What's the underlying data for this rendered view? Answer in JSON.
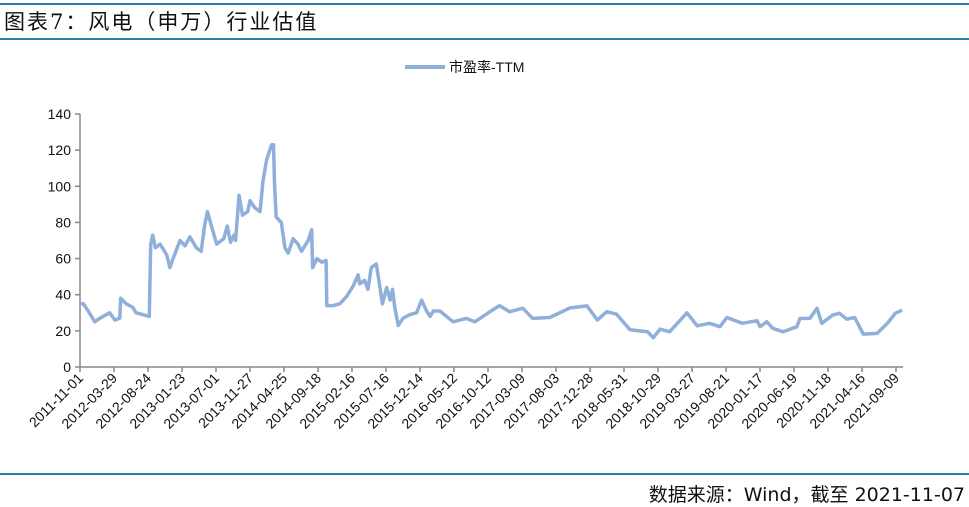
{
  "title": "图表7：风电（申万）行业估值",
  "source": "数据来源：Wind，截至 2021-11-07",
  "chart_data": {
    "type": "line",
    "title": "",
    "xlabel": "",
    "ylabel": "",
    "ylim": [
      0,
      140
    ],
    "yticks": [
      0,
      20,
      40,
      60,
      80,
      100,
      120,
      140
    ],
    "xticks": [
      "2011-11-01",
      "2012-03-29",
      "2012-08-24",
      "2013-01-23",
      "2013-07-01",
      "2013-11-27",
      "2014-04-25",
      "2014-09-18",
      "2015-02-16",
      "2015-07-16",
      "2015-12-14",
      "2016-05-12",
      "2016-10-12",
      "2017-03-09",
      "2017-08-03",
      "2017-12-28",
      "2018-05-31",
      "2018-10-29",
      "2019-03-27",
      "2019-08-21",
      "2020-01-17",
      "2020-06-19",
      "2020-11-18",
      "2021-04-16",
      "2021-09-09"
    ],
    "grid": false,
    "legend_position": "top",
    "line_color": "#8fb0da",
    "series": [
      {
        "name": "市盈率-TTM",
        "points": [
          [
            "2011-11-01",
            35
          ],
          [
            "2011-11-16",
            35
          ],
          [
            "2011-12-07",
            31
          ],
          [
            "2012-01-05",
            25
          ],
          [
            "2012-01-27",
            27
          ],
          [
            "2012-03-10",
            30
          ],
          [
            "2012-04-02",
            26
          ],
          [
            "2012-04-23",
            27
          ],
          [
            "2012-04-27",
            38
          ],
          [
            "2012-05-21",
            35
          ],
          [
            "2012-06-19",
            33
          ],
          [
            "2012-07-03",
            30
          ],
          [
            "2012-08-01",
            29
          ],
          [
            "2012-08-30",
            28
          ],
          [
            "2012-09-05",
            68
          ],
          [
            "2012-09-14",
            73
          ],
          [
            "2012-09-26",
            66
          ],
          [
            "2012-10-17",
            68
          ],
          [
            "2012-11-16",
            62
          ],
          [
            "2012-11-30",
            55
          ],
          [
            "2012-12-14",
            60
          ],
          [
            "2013-01-14",
            70
          ],
          [
            "2013-02-06",
            67
          ],
          [
            "2013-03-01",
            72
          ],
          [
            "2013-03-31",
            66
          ],
          [
            "2013-04-23",
            64
          ],
          [
            "2013-05-08",
            78
          ],
          [
            "2013-05-22",
            86
          ],
          [
            "2013-06-17",
            75
          ],
          [
            "2013-07-04",
            68
          ],
          [
            "2013-08-04",
            71
          ],
          [
            "2013-08-19",
            78
          ],
          [
            "2013-09-03",
            69
          ],
          [
            "2013-09-18",
            73
          ],
          [
            "2013-09-25",
            70
          ],
          [
            "2013-10-10",
            95
          ],
          [
            "2013-10-25",
            84
          ],
          [
            "2013-11-17",
            86
          ],
          [
            "2013-11-27",
            92
          ],
          [
            "2013-12-19",
            88
          ],
          [
            "2014-01-10",
            86
          ],
          [
            "2014-01-23",
            103
          ],
          [
            "2014-02-08",
            115
          ],
          [
            "2014-03-02",
            123
          ],
          [
            "2014-03-10",
            123
          ],
          [
            "2014-03-15",
            100
          ],
          [
            "2014-03-22",
            83
          ],
          [
            "2014-04-13",
            80
          ],
          [
            "2014-04-29",
            66
          ],
          [
            "2014-05-13",
            63
          ],
          [
            "2014-06-03",
            71
          ],
          [
            "2014-06-24",
            68
          ],
          [
            "2014-07-09",
            64
          ],
          [
            "2014-08-07",
            70
          ],
          [
            "2014-08-22",
            76
          ],
          [
            "2014-08-26",
            55
          ],
          [
            "2014-09-13",
            60
          ],
          [
            "2014-10-05",
            58
          ],
          [
            "2014-10-24",
            59
          ],
          [
            "2014-10-27",
            34
          ],
          [
            "2014-11-24",
            34
          ],
          [
            "2014-12-24",
            35
          ],
          [
            "2015-01-23",
            39
          ],
          [
            "2015-02-22",
            45
          ],
          [
            "2015-03-15",
            51
          ],
          [
            "2015-03-22",
            46
          ],
          [
            "2015-04-12",
            48
          ],
          [
            "2015-04-27",
            43
          ],
          [
            "2015-05-12",
            55
          ],
          [
            "2015-06-03",
            57
          ],
          [
            "2015-06-18",
            45
          ],
          [
            "2015-06-30",
            35
          ],
          [
            "2015-07-19",
            44
          ],
          [
            "2015-08-03",
            37
          ],
          [
            "2015-08-14",
            43
          ],
          [
            "2015-08-24",
            33
          ],
          [
            "2015-09-08",
            23
          ],
          [
            "2015-09-30",
            27
          ],
          [
            "2015-10-30",
            29
          ],
          [
            "2015-11-29",
            30
          ],
          [
            "2015-12-21",
            37
          ],
          [
            "2016-01-12",
            31
          ],
          [
            "2016-01-27",
            28
          ],
          [
            "2016-02-11",
            31
          ],
          [
            "2016-03-11",
            31
          ],
          [
            "2016-05-08",
            25
          ],
          [
            "2016-07-06",
            26.9
          ],
          [
            "2016-08-14",
            25
          ],
          [
            "2016-10-31",
            31.5
          ],
          [
            "2016-12-01",
            34
          ],
          [
            "2017-01-14",
            30.6
          ],
          [
            "2017-03-13",
            32.5
          ],
          [
            "2017-04-24",
            26.9
          ],
          [
            "2017-07-07",
            27.4
          ],
          [
            "2017-10-02",
            32.7
          ],
          [
            "2017-12-15",
            33.8
          ],
          [
            "2018-01-30",
            26
          ],
          [
            "2018-03-14",
            30.6
          ],
          [
            "2018-04-27",
            29.3
          ],
          [
            "2018-06-27",
            20.6
          ],
          [
            "2018-09-13",
            19.5
          ],
          [
            "2018-10-08",
            16.2
          ],
          [
            "2018-11-07",
            21
          ],
          [
            "2018-12-19",
            19.5
          ],
          [
            "2019-03-05",
            30
          ],
          [
            "2019-04-18",
            22.8
          ],
          [
            "2019-06-11",
            24.2
          ],
          [
            "2019-07-26",
            22.3
          ],
          [
            "2019-08-25",
            27.4
          ],
          [
            "2019-10-31",
            24.2
          ],
          [
            "2020-01-04",
            25.6
          ],
          [
            "2020-01-17",
            22.3
          ],
          [
            "2020-02-17",
            25
          ],
          [
            "2020-03-15",
            21.4
          ],
          [
            "2020-04-30",
            19.5
          ],
          [
            "2020-07-02",
            22.3
          ],
          [
            "2020-07-16",
            26.9
          ],
          [
            "2020-08-29",
            26.9
          ],
          [
            "2020-09-30",
            32.5
          ],
          [
            "2020-10-21",
            24.2
          ],
          [
            "2020-12-09",
            28.8
          ],
          [
            "2021-01-08",
            29.7
          ],
          [
            "2021-02-08",
            26.5
          ],
          [
            "2021-03-15",
            27.4
          ],
          [
            "2021-04-21",
            18.2
          ],
          [
            "2021-06-20",
            18.6
          ],
          [
            "2021-08-03",
            24.2
          ],
          [
            "2021-09-06",
            29.7
          ],
          [
            "2021-10-05",
            31.5
          ]
        ]
      }
    ]
  }
}
